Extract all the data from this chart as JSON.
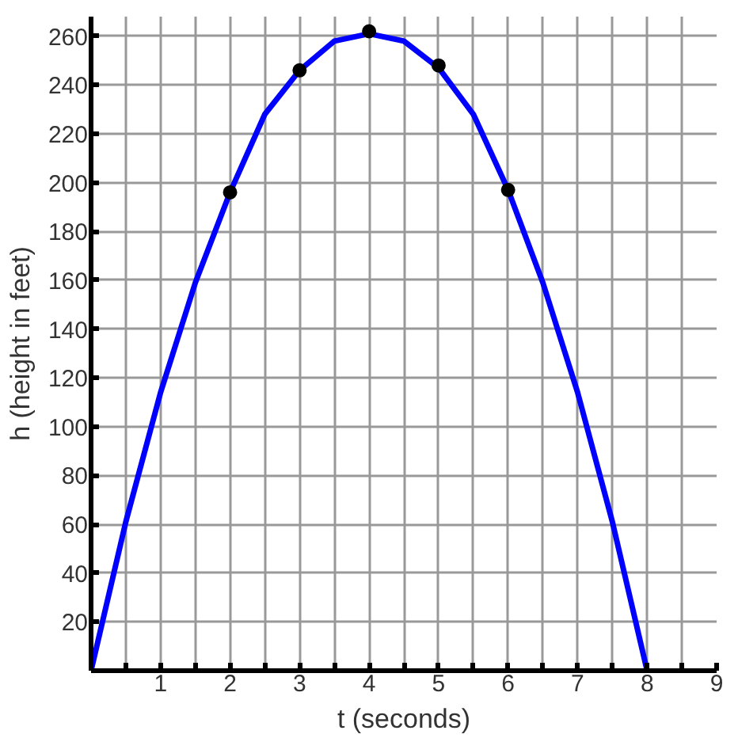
{
  "chart_data": {
    "type": "line",
    "xlabel": "t (seconds)",
    "ylabel": "h (height in feet)",
    "xlim": [
      0,
      9
    ],
    "ylim": [
      0,
      268
    ],
    "xticks": [
      {
        "value": 0,
        "label": null
      },
      {
        "value": 0.5,
        "label": null
      },
      1,
      {
        "value": 1.5,
        "label": null
      },
      2,
      {
        "value": 2.5,
        "label": null
      },
      3,
      {
        "value": 3.5,
        "label": null
      },
      4,
      {
        "value": 4.5,
        "label": null
      },
      5,
      {
        "value": 5.5,
        "label": null
      },
      6,
      {
        "value": 6.5,
        "label": null
      },
      7,
      {
        "value": 7.5,
        "label": null
      },
      8,
      {
        "value": 8.5,
        "label": null
      },
      9
    ],
    "yticks": [
      20,
      40,
      60,
      80,
      100,
      120,
      140,
      160,
      180,
      200,
      220,
      240,
      260
    ],
    "grid": true,
    "series": [
      {
        "color": "#0000ff",
        "marker": "none",
        "x": [
          0,
          0.5,
          1,
          1.5,
          2,
          2.5,
          3,
          3.5,
          4,
          4.5,
          5,
          5.5,
          6,
          6.5,
          7,
          7.5,
          8
        ],
        "values": [
          0,
          61,
          114,
          159,
          196,
          228,
          246,
          258,
          261,
          258,
          247,
          228,
          197,
          159,
          114,
          61,
          0
        ]
      },
      {
        "type": "scatter",
        "color": "#000000",
        "marker": "circle",
        "x": [
          2,
          3,
          4,
          5,
          6
        ],
        "values": [
          196,
          246,
          262,
          248,
          197
        ]
      }
    ]
  }
}
